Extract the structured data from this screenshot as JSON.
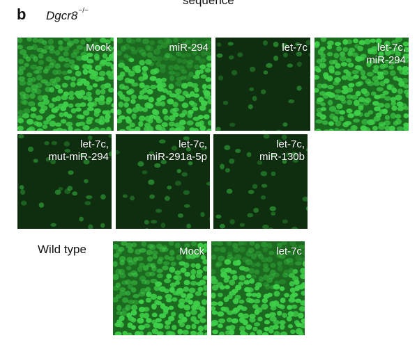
{
  "figure": {
    "top_clipped_text": "sequence",
    "panel_letter": "b",
    "genotype": {
      "name": "Dgcr8",
      "superscript": "−/−"
    },
    "wild_type_label": "Wild type",
    "dgcr8_panels": [
      {
        "lines": [
          "Mock"
        ],
        "brightness": "high"
      },
      {
        "lines": [
          "miR-294"
        ],
        "brightness": "high"
      },
      {
        "lines": [
          "let-7c"
        ],
        "brightness": "low"
      },
      {
        "lines": [
          "let-7c,",
          "miR-294"
        ],
        "brightness": "high"
      },
      {
        "lines": [
          "let-7c,",
          "mut-miR-294"
        ],
        "brightness": "low"
      },
      {
        "lines": [
          "let-7c,",
          "miR-291a-5p"
        ],
        "brightness": "low"
      },
      {
        "lines": [
          "let-7c,",
          "miR-130b"
        ],
        "brightness": "low"
      }
    ],
    "wild_type_panels": [
      {
        "lines": [
          "Mock"
        ],
        "brightness": "high"
      },
      {
        "lines": [
          "let-7c"
        ],
        "brightness": "high"
      }
    ],
    "colors": {
      "fluorescence": "#3fd04a",
      "dim_background": "#0e2e0f",
      "label_text": "#ffffff"
    }
  }
}
